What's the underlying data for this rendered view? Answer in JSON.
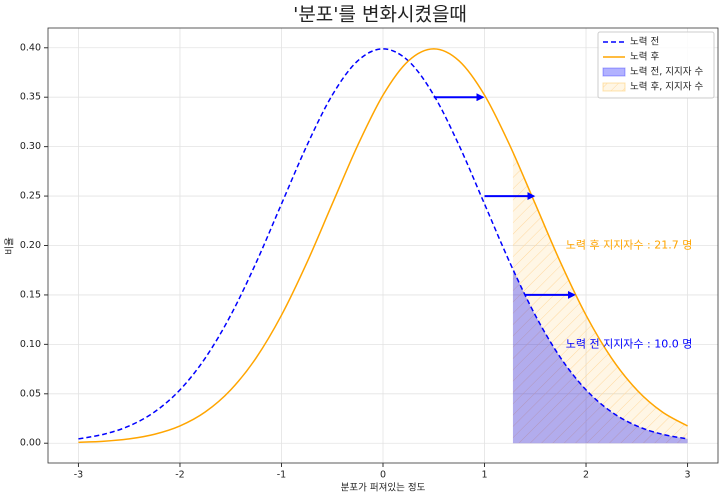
{
  "chart_data": {
    "type": "line",
    "title": "'분포'를 변화시켰을때",
    "xlabel": "분포가 퍼져있는 정도",
    "ylabel": "비율",
    "x": [
      -3,
      -2.75,
      -2.5,
      -2.25,
      -2,
      -1.75,
      -1.5,
      -1.25,
      -1,
      -0.75,
      -0.5,
      -0.25,
      0,
      0.25,
      0.5,
      0.75,
      1,
      1.25,
      1.5,
      1.75,
      2,
      2.25,
      2.5,
      2.75,
      3
    ],
    "series": [
      {
        "name": "노력 전",
        "color": "blue",
        "dash": true,
        "values": [
          0.0044,
          0.0091,
          0.0175,
          0.0317,
          0.054,
          0.0863,
          0.1295,
          0.1826,
          0.242,
          0.3011,
          0.3521,
          0.3867,
          0.3989,
          0.3867,
          0.3521,
          0.3011,
          0.242,
          0.1826,
          0.1295,
          0.0863,
          0.054,
          0.0317,
          0.0175,
          0.0091,
          0.0044
        ]
      },
      {
        "name": "노력 후",
        "color": "orange",
        "dash": false,
        "values": [
          0.0009,
          0.002,
          0.0044,
          0.0091,
          0.0175,
          0.0317,
          0.054,
          0.0863,
          0.1295,
          0.1826,
          0.242,
          0.3011,
          0.3521,
          0.3867,
          0.3989,
          0.3867,
          0.3521,
          0.3011,
          0.242,
          0.1826,
          0.1295,
          0.0863,
          0.054,
          0.0317,
          0.0175
        ]
      }
    ],
    "fills": [
      {
        "name": "노력 전, 지지자 수",
        "color": "blue",
        "opacity": 0.3,
        "hatch": false,
        "x": [
          1.28,
          1.5,
          1.75,
          2,
          2.25,
          2.5,
          2.75,
          3
        ],
        "values": [
          0.1758,
          0.1295,
          0.0863,
          0.054,
          0.0317,
          0.0175,
          0.0091,
          0.0044
        ]
      },
      {
        "name": "노력 후, 지지자 수",
        "color": "orange",
        "opacity": 0.1,
        "hatch": true,
        "x": [
          1.28,
          1.5,
          1.75,
          2,
          2.25,
          2.5,
          2.75,
          3
        ],
        "values": [
          0.2943,
          0.242,
          0.1826,
          0.1295,
          0.0863,
          0.054,
          0.0317,
          0.0175
        ]
      }
    ],
    "arrows": [
      {
        "x": 0.5,
        "x2": 1.0,
        "y": 0.35,
        "color": "blue"
      },
      {
        "x": 1.0,
        "x2": 1.5,
        "y": 0.25,
        "color": "blue"
      },
      {
        "x": 1.4,
        "x2": 1.9,
        "y": 0.15,
        "color": "blue"
      }
    ],
    "annotations": [
      {
        "text": "노력 후 지지자수 : 21.7 명",
        "x": 1.8,
        "y": 0.2,
        "color": "orange"
      },
      {
        "text": "노력 전 지지자수 : 10.0 명",
        "x": 1.8,
        "y": 0.1,
        "color": "blue"
      }
    ],
    "xlim": [
      -3.3,
      3.3
    ],
    "ylim": [
      -0.02,
      0.42
    ],
    "xticks": [
      -3,
      -2,
      -1,
      0,
      1,
      2,
      3
    ],
    "yticks": [
      {
        "value": 0,
        "label": "0.00"
      },
      {
        "value": 0.05,
        "label": "0.05"
      },
      {
        "value": 0.1,
        "label": "0.10"
      },
      {
        "value": 0.15,
        "label": "0.15"
      },
      {
        "value": 0.2,
        "label": "0.20"
      },
      {
        "value": 0.25,
        "label": "0.25"
      },
      {
        "value": 0.3,
        "label": "0.30"
      },
      {
        "value": 0.35,
        "label": "0.35"
      },
      {
        "value": 0.4,
        "label": "0.40"
      }
    ],
    "grid": true,
    "legend": "upper right"
  }
}
